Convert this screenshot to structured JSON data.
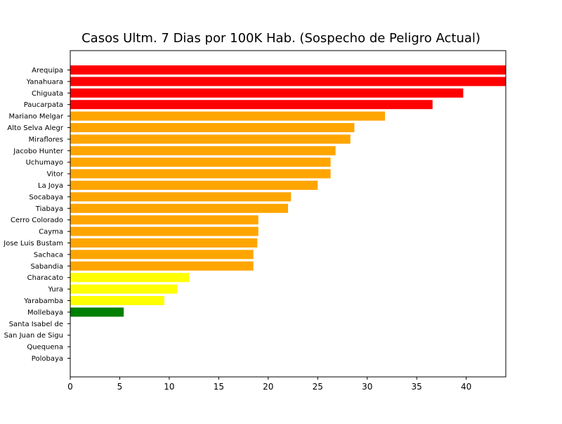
{
  "chart_data": {
    "type": "bar",
    "orientation": "horizontal",
    "title": "Casos Ultm. 7 Dias por 100K Hab. (Sospecho de Peligro Actual)",
    "xlabel": "",
    "ylabel": "",
    "xlim": [
      0,
      44
    ],
    "xticks": [
      0,
      5,
      10,
      15,
      20,
      25,
      30,
      35,
      40
    ],
    "grid": false,
    "categories": [
      "Arequipa",
      "Yanahuara",
      "Chiguata",
      "Paucarpata",
      "Mariano Melgar",
      "Alto Selva Alegr",
      "Miraflores",
      "Jacobo Hunter",
      "Uchumayo",
      "Vitor",
      "La Joya",
      "Socabaya",
      "Tiabaya",
      "Cerro Colorado",
      "Cayma",
      "Jose Luis Bustam",
      "Sachaca",
      "Sabandia",
      "Characato",
      "Yura",
      "Yarabamba",
      "Mollebaya",
      "Santa Isabel de",
      "San Juan de Sigu",
      "Quequena",
      "Polobaya"
    ],
    "values": [
      44.0,
      44.0,
      39.7,
      36.6,
      31.8,
      28.7,
      28.3,
      26.8,
      26.3,
      26.3,
      25.0,
      22.3,
      22.0,
      19.0,
      19.0,
      18.9,
      18.5,
      18.5,
      12.0,
      10.8,
      9.5,
      5.4,
      0,
      0,
      0,
      0
    ],
    "colors": [
      "#ff0000",
      "#ff0000",
      "#ff0000",
      "#ff0000",
      "#ffa500",
      "#ffa500",
      "#ffa500",
      "#ffa500",
      "#ffa500",
      "#ffa500",
      "#ffa500",
      "#ffa500",
      "#ffa500",
      "#ffa500",
      "#ffa500",
      "#ffa500",
      "#ffa500",
      "#ffa500",
      "#ffff00",
      "#ffff00",
      "#ffff00",
      "#008000",
      "#ffffff",
      "#ffffff",
      "#ffffff",
      "#ffffff"
    ]
  }
}
